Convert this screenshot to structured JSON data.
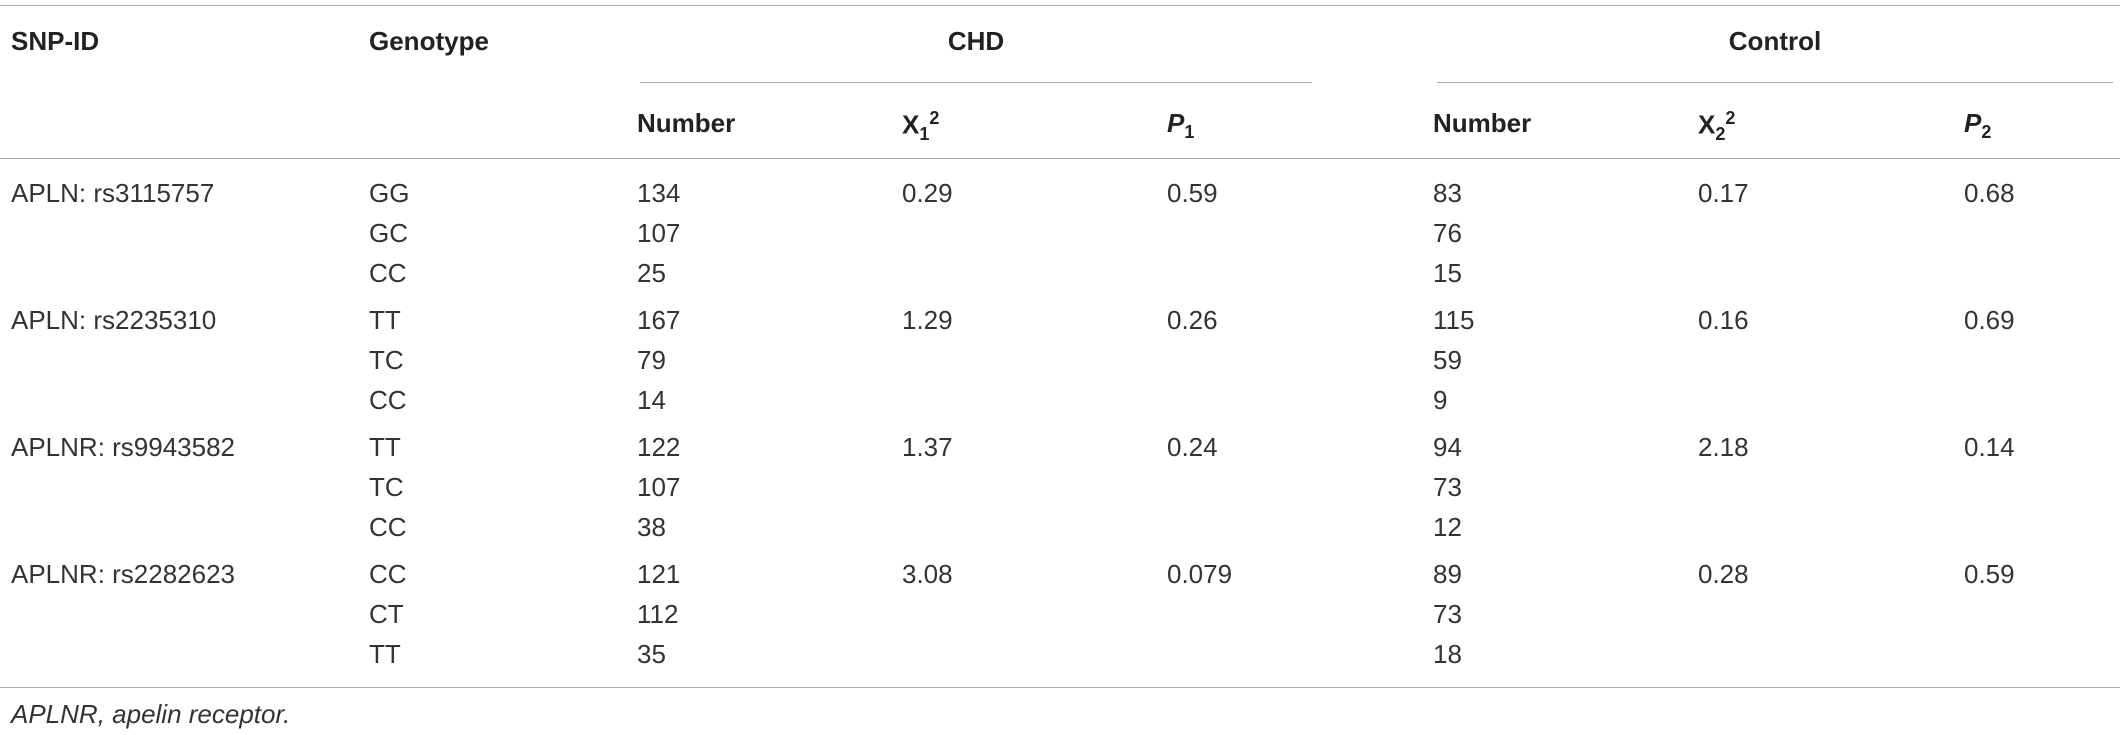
{
  "table": {
    "headers": {
      "snp_id": "SNP-ID",
      "genotype": "Genotype",
      "chd": "CHD",
      "control": "Control",
      "chd_number": "Number",
      "chd_x2": {
        "base": "X",
        "sub": "1",
        "sup": "2"
      },
      "chd_p": {
        "base": "P",
        "sub": "1"
      },
      "control_number": "Number",
      "control_x2": {
        "base": "X",
        "sub": "2",
        "sup": "2"
      },
      "control_p": {
        "base": "P",
        "sub": "2"
      }
    },
    "rows": [
      {
        "snp": "APLN: rs3115757",
        "genotypes": [
          "GG",
          "GC",
          "CC"
        ],
        "chd_number": [
          134,
          107,
          25
        ],
        "chd_x2": 0.29,
        "chd_p": 0.59,
        "control_number": [
          83,
          76,
          15
        ],
        "control_x2": 0.17,
        "control_p": 0.68
      },
      {
        "snp": "APLN: rs2235310",
        "genotypes": [
          "TT",
          "TC",
          "CC"
        ],
        "chd_number": [
          167,
          79,
          14
        ],
        "chd_x2": 1.29,
        "chd_p": 0.26,
        "control_number": [
          115,
          59,
          9
        ],
        "control_x2": 0.16,
        "control_p": 0.69
      },
      {
        "snp": "APLNR: rs9943582",
        "genotypes": [
          "TT",
          "TC",
          "CC"
        ],
        "chd_number": [
          122,
          107,
          38
        ],
        "chd_x2": 1.37,
        "chd_p": 0.24,
        "control_number": [
          94,
          73,
          12
        ],
        "control_x2": 2.18,
        "control_p": 0.14
      },
      {
        "snp": "APLNR: rs2282623",
        "genotypes": [
          "CC",
          "CT",
          "TT"
        ],
        "chd_number": [
          121,
          112,
          35
        ],
        "chd_x2": 3.08,
        "chd_p": 0.079,
        "control_number": [
          89,
          73,
          18
        ],
        "control_x2": 0.28,
        "control_p": 0.59
      }
    ],
    "footnote": "APLNR, apelin receptor."
  }
}
